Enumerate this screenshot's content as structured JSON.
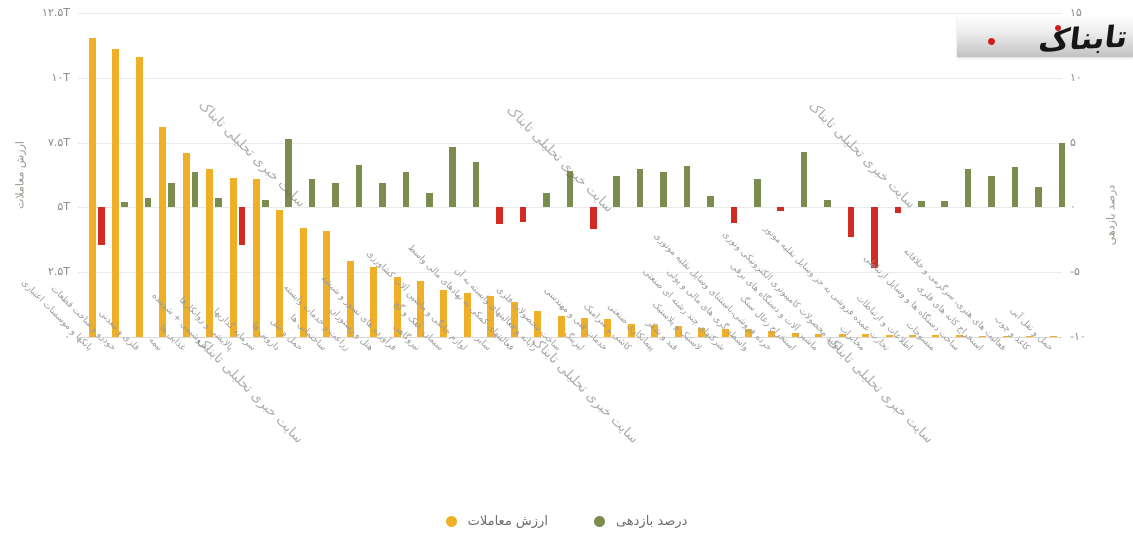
{
  "page": {
    "background": "#ffffff"
  },
  "logo": {
    "text": "تابناک"
  },
  "watermark": {
    "text": "سایت خبری تحلیلی تابناک"
  },
  "legend": {
    "items": [
      {
        "id": "value",
        "label": "ارزش معاملات",
        "color": "#EFB027"
      },
      {
        "id": "return",
        "label": "درصد بازدهی",
        "color": "#7C8C4E"
      }
    ]
  },
  "colors": {
    "bar_value": "#EFB027",
    "bar_return_positive": "#7C8C4E",
    "bar_return_negative": "#D22B24",
    "gridline": "#ebebeb",
    "axis_text": "#8a8a8a"
  },
  "chart_data": {
    "type": "bar",
    "title": "",
    "grid": true,
    "legend_position": "bottom",
    "left_axis": {
      "label": "ارزش معاملات",
      "unit": "T (تومان)",
      "range": [
        0,
        12.5
      ],
      "ticks": [
        "۱۲.۵T",
        "۱۰T",
        "۷.۵T",
        "۵T",
        "۲.۵T",
        "۰"
      ]
    },
    "right_axis": {
      "label": "درصد بازدهی",
      "unit": "%",
      "range": [
        -10,
        15
      ],
      "ticks": [
        "۱۵",
        "۱۰",
        "۵",
        "۰",
        "-۵",
        "-۱۰"
      ]
    },
    "categories": [
      "بانکها و موسسات اعتباری",
      "خودرو و ساخت قطعات",
      "فلزی و معدنی",
      "بیمه",
      "غذایی ها",
      "پتروشیمی + شوینده",
      "پالایشی و روانکارها",
      "سرمایه گذاریها",
      "دارویی ها",
      "حمل و نقل",
      "ساختمانی ها",
      "زراعت و خدمات وابسته",
      "هتل و رستوران",
      "فرآورده های نسوز و شیشه",
      "نیروگاهی",
      "سیمان، آهک و گچ",
      "لوازم خانگی و ماشین آلات کشاورزی",
      "سایر",
      "فعالیتهای کمکی به نهادهای مالی واسط",
      "رایانه و فعالیتهای وابسته به آن",
      "ساخت محصولات فلزی",
      "لیزینگ",
      "خدمات فنی و مهندسی",
      "کاشی و سرامیک",
      "پیمانکاری صنعتی",
      "قند و شکر",
      "لاستیک و پلاستیک",
      "شرکتهای چند رشته ای صنعتی",
      "واسطه گری های مالی و پولی",
      "خرده فروشی،باستثنای وسایل نقلیه موتوری",
      "استخراج زغال سنگ",
      "ماشین آلات و دستگاه های برقی",
      "تولید محصولات کامپیوتری الکترونیکی ونوری",
      "مخابرات",
      "تجارت عمده فروشی به جز وسایل نقلیه موتور",
      "اطلاعات و ارتباطات",
      "منسوجات",
      "ساخت دستگاه ها و وسایل ارتباطی",
      "استخراج کانه های فلزی",
      "فعالیت های هنری، سرگرمی و خلاقانه",
      "کاغذ و چوب",
      "حمل و نقل آبی"
    ],
    "series": [
      {
        "name": "ارزش معاملات",
        "unit": "T",
        "color": "#EFB027",
        "values": [
          11.55,
          11.1,
          10.8,
          8.1,
          7.1,
          6.5,
          6.15,
          6.1,
          4.9,
          4.2,
          4.1,
          2.95,
          2.7,
          2.3,
          2.15,
          1.8,
          1.7,
          1.6,
          1.35,
          1.0,
          0.8,
          0.75,
          0.7,
          0.5,
          0.46,
          0.43,
          0.35,
          0.32,
          0.3,
          0.23,
          0.15,
          0.13,
          0.12,
          0.1,
          0.09,
          0.08,
          0.07,
          0.06,
          0.05,
          0.045,
          0.04,
          0.03
        ]
      },
      {
        "name": "درصد بازدهی",
        "unit": "%",
        "color_positive": "#7C8C4E",
        "color_negative": "#D22B24",
        "values": [
          -2.9,
          0.4,
          0.7,
          1.9,
          2.7,
          0.7,
          -2.9,
          0.6,
          5.3,
          2.2,
          1.9,
          3.3,
          1.9,
          2.7,
          1.1,
          4.7,
          3.5,
          -1.3,
          -1.1,
          1.1,
          2.8,
          -1.7,
          2.4,
          3.0,
          2.7,
          3.2,
          0.9,
          -1.2,
          2.2,
          -0.3,
          4.3,
          0.6,
          -2.3,
          -4.7,
          -0.4,
          0.5,
          0.5,
          3.0,
          2.4,
          3.1,
          1.6,
          5.0
        ]
      }
    ]
  }
}
